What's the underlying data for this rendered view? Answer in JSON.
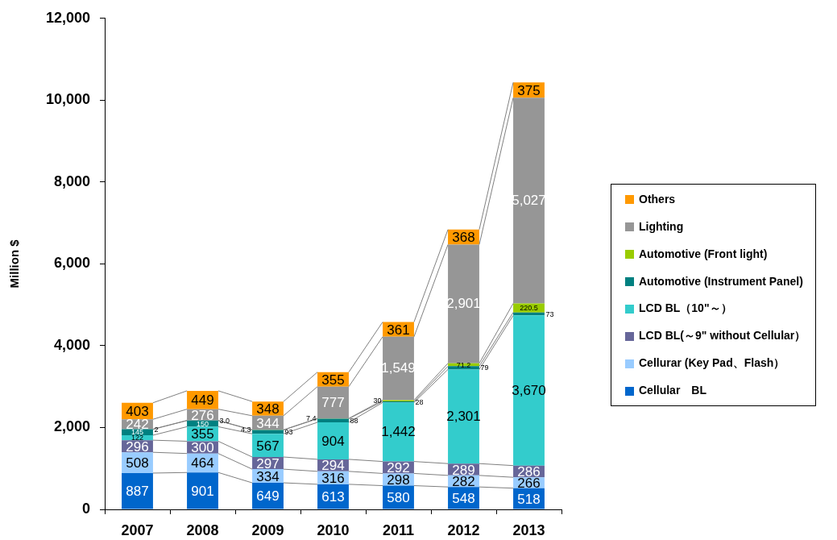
{
  "chart_data": {
    "type": "bar",
    "stacked": true,
    "ylabel": "Million $",
    "categories": [
      "2007",
      "2008",
      "2009",
      "2010",
      "2011",
      "2012",
      "2013"
    ],
    "series": [
      {
        "name": "Cellular　BL",
        "color": "#0066cc",
        "values": [
          887,
          901,
          649,
          613,
          580,
          548,
          518
        ],
        "value_labels": [
          "887",
          "901",
          "649",
          "613",
          "580",
          "548",
          "518"
        ]
      },
      {
        "name": "Cellurar (Key Pad、Flash）",
        "color": "#99ccff",
        "values": [
          508,
          464,
          334,
          316,
          298,
          282,
          266
        ],
        "value_labels": [
          "508",
          "464",
          "334",
          "316",
          "298",
          "282",
          "266"
        ]
      },
      {
        "name": "LCD BL(～9\" without Cellular）",
        "color": "#666699",
        "values": [
          296,
          300,
          297,
          294,
          292,
          289,
          286
        ],
        "value_labels": [
          "296",
          "300",
          "297",
          "294",
          "292",
          "289",
          "286"
        ]
      },
      {
        "name": "LCD BL（10\"～）",
        "color": "#33cccc",
        "values": [
          122,
          355,
          567,
          904,
          1442,
          2301,
          3670
        ],
        "value_labels": [
          "122",
          "355",
          "567",
          "904",
          "1,442",
          "2,301",
          "3,670"
        ]
      },
      {
        "name": "Automotive (Instrument Panel)",
        "color": "#008080",
        "values": [
          145,
          150,
          93,
          88,
          28,
          79,
          73
        ],
        "value_labels": [
          "145",
          "150",
          "93",
          "88",
          "28",
          "79",
          "73"
        ]
      },
      {
        "name": "Automotive (Front light)",
        "color": "#99cc00",
        "values": [
          2,
          3.0,
          4.3,
          7.4,
          30,
          71.2,
          220.5
        ],
        "value_labels": [
          "2",
          "3.0",
          "4.3",
          "7.4",
          "30",
          "71.2",
          "220.5"
        ]
      },
      {
        "name": "Lighting",
        "color": "#969696",
        "values": [
          242,
          276,
          344,
          777,
          1549,
          2901,
          5027
        ],
        "value_labels": [
          "242",
          "276",
          "344",
          "777",
          "1,549",
          "2,901",
          "5,027"
        ]
      },
      {
        "name": "Others",
        "color": "#ff9900",
        "values": [
          403,
          449,
          348,
          355,
          361,
          368,
          375
        ],
        "value_labels": [
          "403",
          "449",
          "348",
          "355",
          "361",
          "368",
          "375"
        ]
      }
    ],
    "ylim": [
      0,
      12000
    ],
    "yticks": [
      0,
      {
        "value": 2000,
        "label": "2,000"
      },
      {
        "value": 4000,
        "label": "4,000"
      },
      {
        "value": 6000,
        "label": "6,000"
      },
      {
        "value": 8000,
        "label": "8,000"
      },
      {
        "value": 10000,
        "label": "10,000"
      },
      {
        "value": 12000,
        "label": "12,000"
      }
    ],
    "legend": "right",
    "grid": false
  }
}
